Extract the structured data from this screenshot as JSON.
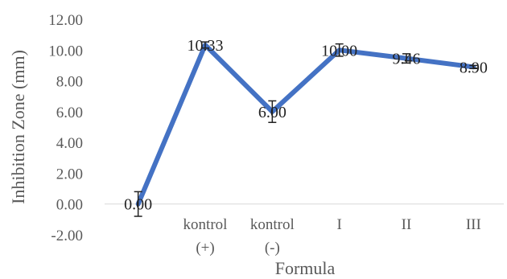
{
  "chart_data": {
    "type": "line",
    "categories": [
      [
        "",
        ""
      ],
      [
        "kontrol",
        "(+)"
      ],
      [
        "kontrol",
        "(-)"
      ],
      [
        "I",
        ""
      ],
      [
        "II",
        ""
      ],
      [
        "III",
        ""
      ]
    ],
    "series": [
      {
        "values": [
          0.0,
          10.33,
          6.0,
          10.0,
          9.46,
          8.9
        ],
        "data_labels": [
          "0.00",
          "10.33",
          "6.00",
          "10.00",
          "9.46",
          "8.90"
        ],
        "error": [
          0.8,
          0.2,
          0.7,
          0.4,
          0.3,
          0.1
        ],
        "color": "#4472C4"
      }
    ],
    "xlabel": "Formula",
    "ylabel": "Inhibition Zone (mm)",
    "ylim": [
      -2,
      12
    ],
    "yticks": [
      "-2.00",
      "0.00",
      "2.00",
      "4.00",
      "6.00",
      "8.00",
      "10.00",
      "12.00"
    ],
    "grid": false,
    "legend": "none"
  }
}
